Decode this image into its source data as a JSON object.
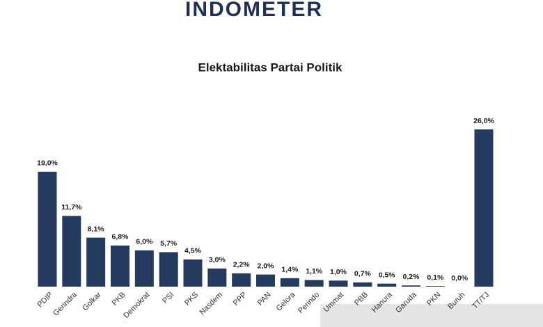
{
  "logo": "INDOMETER",
  "chart_data": {
    "type": "bar",
    "title": "Elektabilitas Partai Politik",
    "categories": [
      "PDIP",
      "Gerindra",
      "Golkar",
      "PKB",
      "Demokrat",
      "PSI",
      "PKS",
      "Nasdem",
      "PPP",
      "PAN",
      "Gelora",
      "Perindo",
      "Ummat",
      "PBB",
      "Hanura",
      "Garuda",
      "PKN",
      "Buruh",
      "TT/TJ"
    ],
    "values": [
      19.0,
      11.7,
      8.1,
      6.8,
      6.0,
      5.7,
      4.5,
      3.0,
      2.2,
      2.0,
      1.4,
      1.1,
      1.0,
      0.7,
      0.5,
      0.2,
      0.1,
      0.0,
      26.0
    ],
    "value_labels": [
      "19,0%",
      "11,7%",
      "8,1%",
      "6,8%",
      "6,0%",
      "5,7%",
      "4,5%",
      "3,0%",
      "2,2%",
      "2,0%",
      "1,4%",
      "1,1%",
      "1,0%",
      "0,7%",
      "0,5%",
      "0,2%",
      "0,1%",
      "0,0%",
      "26,0%"
    ],
    "color": "#243a5e"
  }
}
